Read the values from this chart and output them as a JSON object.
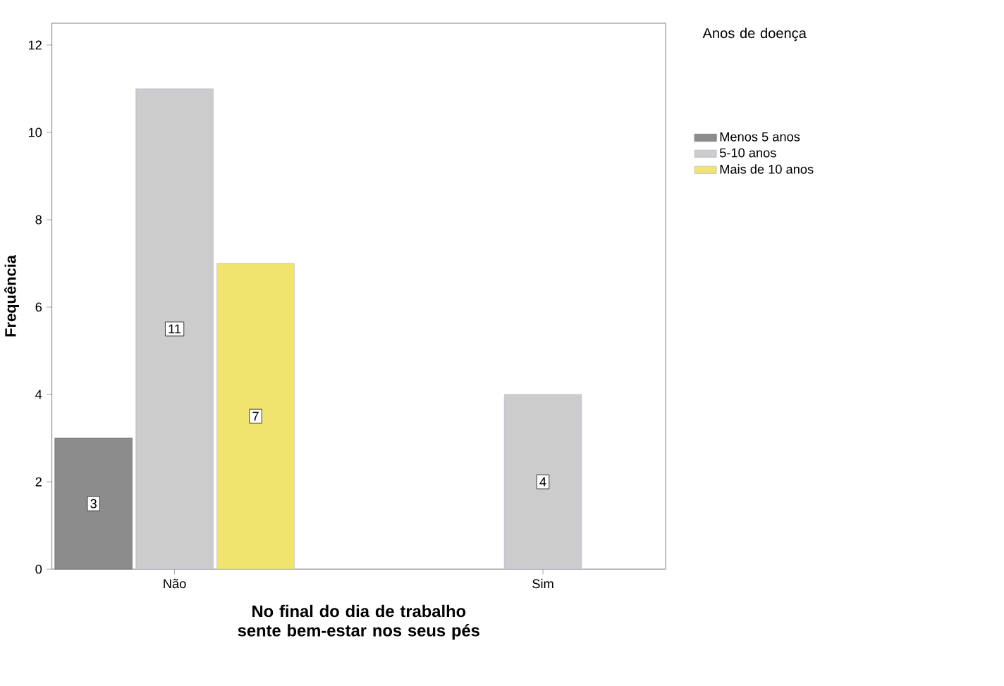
{
  "chart_data": {
    "type": "bar",
    "xlabel": "No final do dia de trabalho sente bem-estar nos seus pés",
    "ylabel": "Frequência",
    "legend_title": "Anos de doença",
    "categories": [
      "Não",
      "Sim"
    ],
    "series": [
      {
        "name": "Menos 5 anos",
        "color": "#8c8c8c",
        "values": [
          3,
          null
        ]
      },
      {
        "name": "5-10 anos",
        "color": "#cccccc",
        "values": [
          11,
          4
        ]
      },
      {
        "name": "Mais de 10 anos",
        "color": "#f0e46e",
        "values": [
          7,
          null
        ]
      }
    ],
    "ylim": [
      0,
      12.5
    ],
    "yticks": [
      0,
      2,
      4,
      6,
      8,
      10,
      12
    ],
    "data_labels": true,
    "legend": "top right",
    "grid": false
  }
}
